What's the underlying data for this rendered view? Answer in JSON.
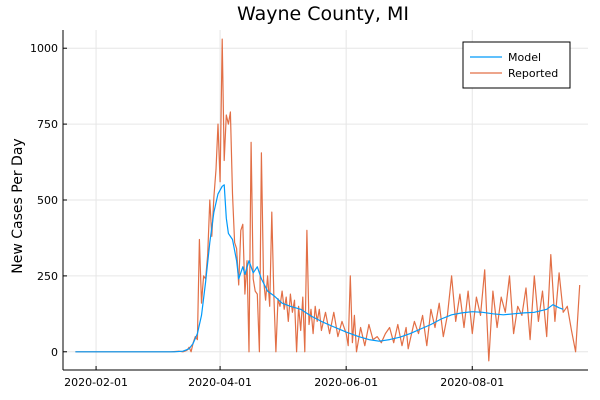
{
  "chart_data": {
    "type": "line",
    "title": "Wayne County, MI",
    "ylabel": "New Cases Per Day",
    "xlabel": "",
    "x_axis": "date",
    "xlim": [
      "2020-01-16",
      "2020-09-26"
    ],
    "ylim": [
      -60,
      1060
    ],
    "x_ticks": [
      "2020-02-01",
      "2020-04-01",
      "2020-06-01",
      "2020-08-01"
    ],
    "y_ticks": [
      0,
      250,
      500,
      750,
      1000
    ],
    "grid": true,
    "legend_position": "top-right",
    "series": [
      {
        "name": "Model",
        "color": "#009AFA",
        "points": [
          [
            "2020-01-22",
            0
          ],
          [
            "2020-02-15",
            0
          ],
          [
            "2020-03-01",
            0
          ],
          [
            "2020-03-10",
            0
          ],
          [
            "2020-03-14",
            2
          ],
          [
            "2020-03-17",
            10
          ],
          [
            "2020-03-19",
            28
          ],
          [
            "2020-03-21",
            60
          ],
          [
            "2020-03-23",
            120
          ],
          [
            "2020-03-25",
            230
          ],
          [
            "2020-03-27",
            360
          ],
          [
            "2020-03-29",
            460
          ],
          [
            "2020-03-31",
            520
          ],
          [
            "2020-04-02",
            545
          ],
          [
            "2020-04-03",
            550
          ],
          [
            "2020-04-04",
            440
          ],
          [
            "2020-04-05",
            390
          ],
          [
            "2020-04-07",
            370
          ],
          [
            "2020-04-09",
            300
          ],
          [
            "2020-04-10",
            240
          ],
          [
            "2020-04-12",
            280
          ],
          [
            "2020-04-13",
            255
          ],
          [
            "2020-04-15",
            300
          ],
          [
            "2020-04-17",
            260
          ],
          [
            "2020-04-19",
            280
          ],
          [
            "2020-04-21",
            240
          ],
          [
            "2020-04-24",
            200
          ],
          [
            "2020-04-27",
            185
          ],
          [
            "2020-05-01",
            160
          ],
          [
            "2020-05-05",
            150
          ],
          [
            "2020-05-10",
            140
          ],
          [
            "2020-05-15",
            118
          ],
          [
            "2020-05-20",
            100
          ],
          [
            "2020-05-25",
            85
          ],
          [
            "2020-06-01",
            65
          ],
          [
            "2020-06-07",
            50
          ],
          [
            "2020-06-12",
            40
          ],
          [
            "2020-06-17",
            35
          ],
          [
            "2020-06-22",
            40
          ],
          [
            "2020-06-27",
            48
          ],
          [
            "2020-07-02",
            60
          ],
          [
            "2020-07-07",
            75
          ],
          [
            "2020-07-12",
            90
          ],
          [
            "2020-07-17",
            108
          ],
          [
            "2020-07-22",
            122
          ],
          [
            "2020-07-27",
            128
          ],
          [
            "2020-08-01",
            132
          ],
          [
            "2020-08-06",
            130
          ],
          [
            "2020-08-11",
            125
          ],
          [
            "2020-08-16",
            122
          ],
          [
            "2020-08-21",
            125
          ],
          [
            "2020-08-26",
            128
          ],
          [
            "2020-08-31",
            130
          ],
          [
            "2020-09-03",
            135
          ],
          [
            "2020-09-06",
            140
          ],
          [
            "2020-09-09",
            155
          ],
          [
            "2020-09-12",
            145
          ],
          [
            "2020-09-14",
            140
          ]
        ]
      },
      {
        "name": "Reported",
        "color": "#E26F46",
        "points": [
          [
            "2020-01-22",
            0
          ],
          [
            "2020-02-15",
            0
          ],
          [
            "2020-03-01",
            0
          ],
          [
            "2020-03-08",
            0
          ],
          [
            "2020-03-12",
            2
          ],
          [
            "2020-03-14",
            0
          ],
          [
            "2020-03-16",
            5
          ],
          [
            "2020-03-17",
            15
          ],
          [
            "2020-03-18",
            0
          ],
          [
            "2020-03-19",
            30
          ],
          [
            "2020-03-20",
            50
          ],
          [
            "2020-03-21",
            40
          ],
          [
            "2020-03-22",
            370
          ],
          [
            "2020-03-23",
            160
          ],
          [
            "2020-03-24",
            250
          ],
          [
            "2020-03-25",
            240
          ],
          [
            "2020-03-26",
            320
          ],
          [
            "2020-03-27",
            500
          ],
          [
            "2020-03-28",
            380
          ],
          [
            "2020-03-29",
            510
          ],
          [
            "2020-03-30",
            600
          ],
          [
            "2020-03-31",
            750
          ],
          [
            "2020-04-01",
            560
          ],
          [
            "2020-04-02",
            1030
          ],
          [
            "2020-04-03",
            630
          ],
          [
            "2020-04-04",
            780
          ],
          [
            "2020-04-05",
            750
          ],
          [
            "2020-04-06",
            790
          ],
          [
            "2020-04-07",
            520
          ],
          [
            "2020-04-08",
            360
          ],
          [
            "2020-04-09",
            340
          ],
          [
            "2020-04-10",
            220
          ],
          [
            "2020-04-11",
            400
          ],
          [
            "2020-04-12",
            420
          ],
          [
            "2020-04-13",
            190
          ],
          [
            "2020-04-14",
            300
          ],
          [
            "2020-04-15",
            0
          ],
          [
            "2020-04-16",
            690
          ],
          [
            "2020-04-17",
            240
          ],
          [
            "2020-04-18",
            200
          ],
          [
            "2020-04-19",
            190
          ],
          [
            "2020-04-20",
            0
          ],
          [
            "2020-04-21",
            655
          ],
          [
            "2020-04-22",
            240
          ],
          [
            "2020-04-23",
            170
          ],
          [
            "2020-04-24",
            250
          ],
          [
            "2020-04-25",
            150
          ],
          [
            "2020-04-26",
            460
          ],
          [
            "2020-04-27",
            190
          ],
          [
            "2020-04-28",
            0
          ],
          [
            "2020-04-29",
            175
          ],
          [
            "2020-04-30",
            150
          ],
          [
            "2020-05-01",
            200
          ],
          [
            "2020-05-02",
            140
          ],
          [
            "2020-05-03",
            180
          ],
          [
            "2020-05-04",
            100
          ],
          [
            "2020-05-05",
            190
          ],
          [
            "2020-05-06",
            130
          ],
          [
            "2020-05-07",
            170
          ],
          [
            "2020-05-08",
            0
          ],
          [
            "2020-05-09",
            150
          ],
          [
            "2020-05-10",
            70
          ],
          [
            "2020-05-11",
            180
          ],
          [
            "2020-05-12",
            0
          ],
          [
            "2020-05-13",
            400
          ],
          [
            "2020-05-14",
            90
          ],
          [
            "2020-05-15",
            140
          ],
          [
            "2020-05-16",
            60
          ],
          [
            "2020-05-17",
            150
          ],
          [
            "2020-05-18",
            100
          ],
          [
            "2020-05-19",
            140
          ],
          [
            "2020-05-20",
            70
          ],
          [
            "2020-05-22",
            130
          ],
          [
            "2020-05-24",
            60
          ],
          [
            "2020-05-26",
            130
          ],
          [
            "2020-05-28",
            50
          ],
          [
            "2020-05-30",
            100
          ],
          [
            "2020-06-01",
            60
          ],
          [
            "2020-06-02",
            20
          ],
          [
            "2020-06-03",
            250
          ],
          [
            "2020-06-04",
            30
          ],
          [
            "2020-06-05",
            120
          ],
          [
            "2020-06-06",
            0
          ],
          [
            "2020-06-08",
            80
          ],
          [
            "2020-06-10",
            20
          ],
          [
            "2020-06-12",
            90
          ],
          [
            "2020-06-14",
            40
          ],
          [
            "2020-06-16",
            50
          ],
          [
            "2020-06-18",
            30
          ],
          [
            "2020-06-20",
            60
          ],
          [
            "2020-06-22",
            80
          ],
          [
            "2020-06-24",
            30
          ],
          [
            "2020-06-26",
            90
          ],
          [
            "2020-06-28",
            20
          ],
          [
            "2020-06-30",
            80
          ],
          [
            "2020-07-01",
            10
          ],
          [
            "2020-07-02",
            40
          ],
          [
            "2020-07-04",
            100
          ],
          [
            "2020-07-06",
            60
          ],
          [
            "2020-07-08",
            120
          ],
          [
            "2020-07-10",
            20
          ],
          [
            "2020-07-12",
            140
          ],
          [
            "2020-07-14",
            80
          ],
          [
            "2020-07-16",
            160
          ],
          [
            "2020-07-18",
            50
          ],
          [
            "2020-07-20",
            120
          ],
          [
            "2020-07-22",
            250
          ],
          [
            "2020-07-24",
            100
          ],
          [
            "2020-07-26",
            190
          ],
          [
            "2020-07-28",
            80
          ],
          [
            "2020-07-30",
            200
          ],
          [
            "2020-08-01",
            60
          ],
          [
            "2020-08-03",
            180
          ],
          [
            "2020-08-05",
            120
          ],
          [
            "2020-08-07",
            270
          ],
          [
            "2020-08-09",
            -30
          ],
          [
            "2020-08-11",
            200
          ],
          [
            "2020-08-13",
            80
          ],
          [
            "2020-08-15",
            180
          ],
          [
            "2020-08-17",
            130
          ],
          [
            "2020-08-19",
            250
          ],
          [
            "2020-08-21",
            60
          ],
          [
            "2020-08-23",
            150
          ],
          [
            "2020-08-25",
            120
          ],
          [
            "2020-08-27",
            210
          ],
          [
            "2020-08-29",
            40
          ],
          [
            "2020-08-31",
            250
          ],
          [
            "2020-09-02",
            100
          ],
          [
            "2020-09-04",
            200
          ],
          [
            "2020-09-06",
            50
          ],
          [
            "2020-09-08",
            320
          ],
          [
            "2020-09-10",
            100
          ],
          [
            "2020-09-12",
            260
          ],
          [
            "2020-09-14",
            130
          ],
          [
            "2020-09-16",
            150
          ],
          [
            "2020-09-18",
            70
          ],
          [
            "2020-09-20",
            0
          ],
          [
            "2020-09-22",
            220
          ]
        ]
      }
    ]
  }
}
